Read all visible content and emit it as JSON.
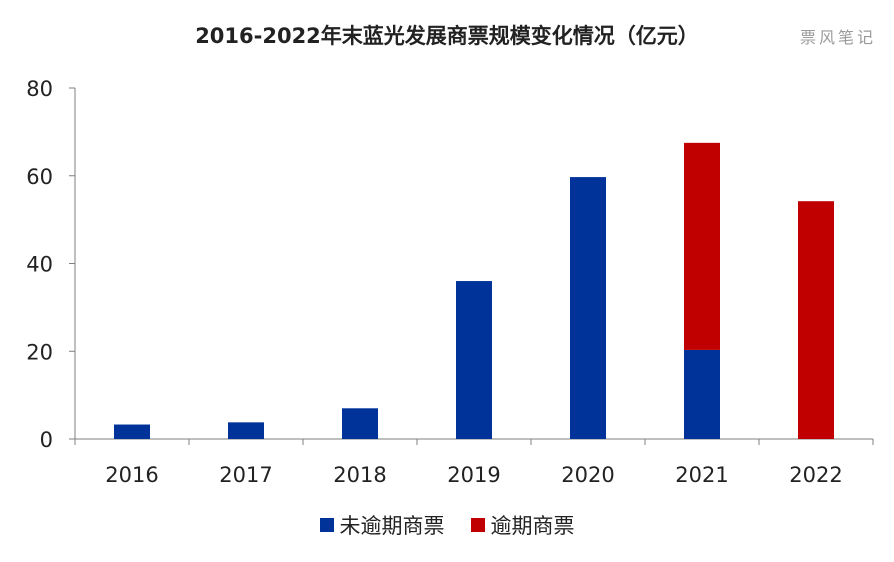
{
  "chart_data": {
    "type": "bar",
    "stacked": true,
    "title": "2016-2022年末蓝光发展商票规模变化情况（亿元）",
    "watermark": "票风笔记",
    "categories": [
      "2016",
      "2017",
      "2018",
      "2019",
      "2020",
      "2021",
      "2022"
    ],
    "ylim": [
      0,
      80
    ],
    "yticks": [
      0,
      20,
      40,
      60,
      80
    ],
    "grid": false,
    "legend_position": "bottom",
    "series": [
      {
        "name": "未逾期商票",
        "color": "#003399",
        "values": [
          3.3,
          3.8,
          7.0,
          36.0,
          59.7,
          20.3,
          0
        ]
      },
      {
        "name": "逾期商票",
        "color": "#c00000",
        "values": [
          0,
          0,
          0,
          0,
          0,
          47.2,
          54.2
        ]
      }
    ]
  }
}
